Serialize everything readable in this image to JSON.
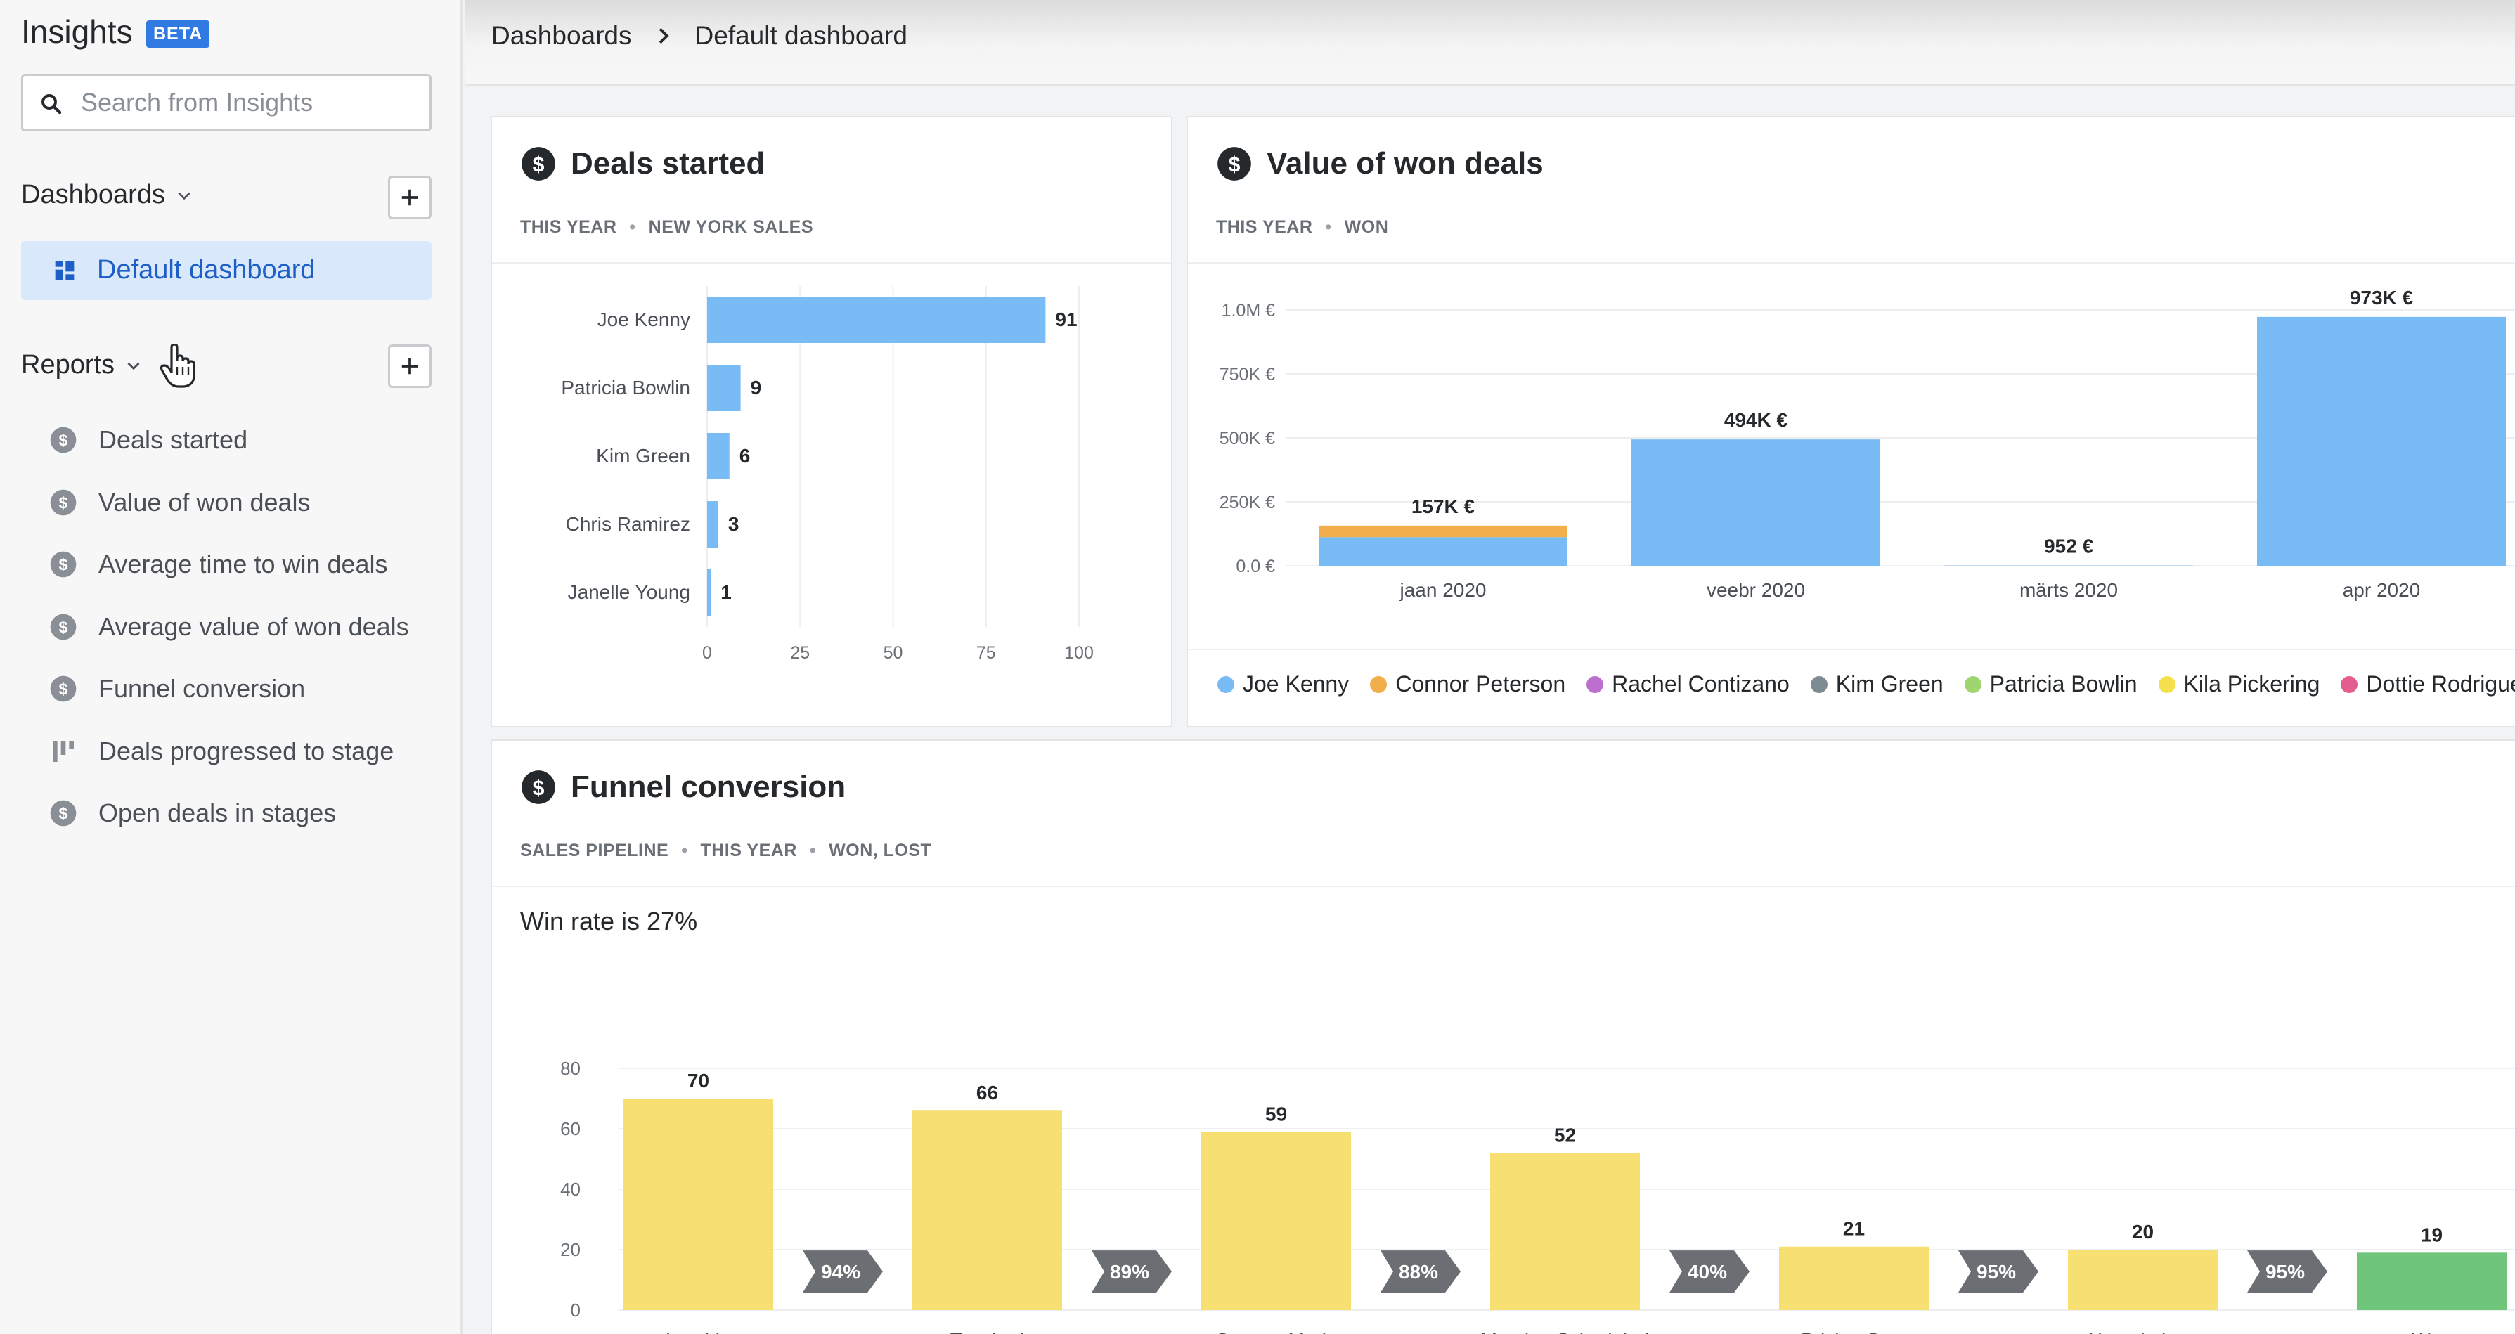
{
  "app": {
    "title": "Insights",
    "badge": "BETA"
  },
  "search": {
    "placeholder": "Search from Insights"
  },
  "sidebar": {
    "dashboards_label": "Dashboards",
    "active_dashboard": "Default dashboard",
    "reports_label": "Reports",
    "reports": [
      {
        "label": "Deals started",
        "icon": "dollar-icon"
      },
      {
        "label": "Value of won deals",
        "icon": "dollar-icon"
      },
      {
        "label": "Average time to win deals",
        "icon": "dollar-icon"
      },
      {
        "label": "Average value of won deals",
        "icon": "dollar-icon"
      },
      {
        "label": "Funnel conversion",
        "icon": "dollar-icon"
      },
      {
        "label": "Deals progressed to stage",
        "icon": "stage-bars-icon"
      },
      {
        "label": "Open deals in stages",
        "icon": "dollar-icon"
      }
    ]
  },
  "breadcrumb": {
    "parent": "Dashboards",
    "current": "Default dashboard"
  },
  "cards": {
    "deals_started": {
      "title": "Deals started",
      "sub": [
        "THIS YEAR",
        "NEW YORK SALES"
      ]
    },
    "won_value": {
      "title": "Value of won deals",
      "sub": [
        "THIS YEAR",
        "WON"
      ]
    },
    "funnel": {
      "title": "Funnel conversion",
      "sub": [
        "SALES PIPELINE",
        "THIS YEAR",
        "WON, LOST"
      ],
      "win_rate": "Win rate is 27%"
    }
  },
  "colors": {
    "accent": "#317ae2",
    "bar_blue": "#79bcf5",
    "bar_orange": "#f2ae4b",
    "bar_yellow": "#f8df72",
    "bar_green": "#6fc57a",
    "arrow_gray": "#6b6f73"
  },
  "chart_data": [
    {
      "type": "bar",
      "orientation": "horizontal",
      "categories": [
        "Joe Kenny",
        "Patricia Bowlin",
        "Kim Green",
        "Chris Ramirez",
        "Janelle Young"
      ],
      "values": [
        91,
        9,
        6,
        3,
        1
      ],
      "xlim": [
        0,
        100
      ],
      "xticks": [
        "0",
        "25",
        "50",
        "75",
        "100"
      ],
      "grid": true
    },
    {
      "type": "bar",
      "stacked": true,
      "categories": [
        "jaan 2020",
        "veebr 2020",
        "märts 2020",
        "apr 2020"
      ],
      "totals_labels": [
        "157K €",
        "494K €",
        "952 €",
        "973K €"
      ],
      "series": [
        {
          "name": "Joe Kenny",
          "color": "#79bcf5",
          "values": [
            112000,
            494000,
            952,
            973000
          ]
        },
        {
          "name": "Connor Peterson",
          "color": "#f2ae4b",
          "values": [
            45000,
            0,
            0,
            0
          ]
        },
        {
          "name": "Rachel Contizano",
          "color": "#bd6fd0",
          "values": [
            0,
            0,
            0,
            0
          ]
        },
        {
          "name": "Kim Green",
          "color": "#7d8b93",
          "values": [
            0,
            0,
            0,
            0
          ]
        },
        {
          "name": "Patricia Bowlin",
          "color": "#9ed56e",
          "values": [
            0,
            0,
            0,
            0
          ]
        },
        {
          "name": "Kila Pickering",
          "color": "#f4e04d",
          "values": [
            0,
            0,
            0,
            0
          ]
        },
        {
          "name": "Dottie Rodrigue",
          "color": "#e35d8f",
          "values": [
            0,
            0,
            0,
            0
          ]
        }
      ],
      "ylim": [
        0,
        1000000
      ],
      "yticks": [
        "0.0 €",
        "250K €",
        "500K €",
        "750K €",
        "1.0M €"
      ],
      "legend_position": "bottom",
      "grid": true
    },
    {
      "type": "bar",
      "categories": [
        "Lead In",
        "Touched",
        "Contact Made",
        "Meeting Scheduled",
        "Pricing Sent",
        "Negotiations",
        "Won"
      ],
      "values": [
        70,
        66,
        59,
        52,
        21,
        20,
        19
      ],
      "conversions": [
        "94%",
        "89%",
        "88%",
        "40%",
        "95%",
        "95%"
      ],
      "ylim": [
        0,
        80
      ],
      "yticks": [
        "0",
        "20",
        "40",
        "60",
        "80"
      ],
      "grid": true
    }
  ]
}
